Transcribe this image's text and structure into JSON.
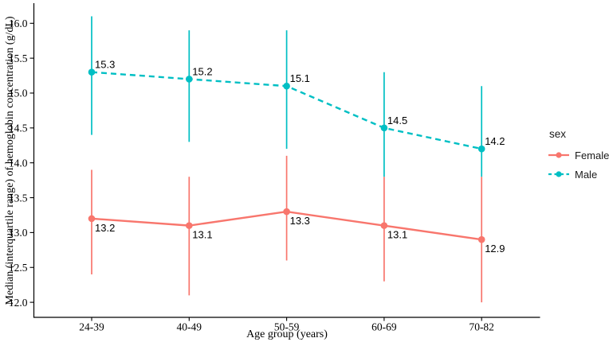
{
  "chart_data": {
    "type": "line",
    "title": "",
    "xlabel": "Age group (years)",
    "ylabel": "Median (interquartile range) of hemoglobin concentration (g/dL)",
    "categories": [
      "24-39",
      "40-49",
      "50-59",
      "60-69",
      "70-82"
    ],
    "yticks": [
      16.0,
      15.5,
      15.0,
      14.5,
      14.0,
      13.5,
      13.0,
      12.5,
      12.0
    ],
    "ylim": [
      11.8,
      16.3
    ],
    "grid": false,
    "legend": {
      "title": "sex",
      "position": "right"
    },
    "series": [
      {
        "name": "Female",
        "color": "#F8766D",
        "line_style": "solid",
        "label_position": "below",
        "median": [
          13.2,
          13.1,
          13.3,
          13.1,
          12.9
        ],
        "iqr_low": [
          12.4,
          12.1,
          12.6,
          12.3,
          12.0
        ],
        "iqr_high": [
          13.9,
          13.8,
          14.1,
          13.8,
          13.8
        ]
      },
      {
        "name": "Male",
        "color": "#00BFC4",
        "line_style": "dashed",
        "label_position": "above",
        "median": [
          15.3,
          15.2,
          15.1,
          14.5,
          14.2
        ],
        "iqr_low": [
          14.4,
          14.3,
          14.2,
          13.8,
          13.8
        ],
        "iqr_high": [
          16.1,
          15.9,
          15.9,
          15.3,
          15.1
        ]
      }
    ]
  }
}
